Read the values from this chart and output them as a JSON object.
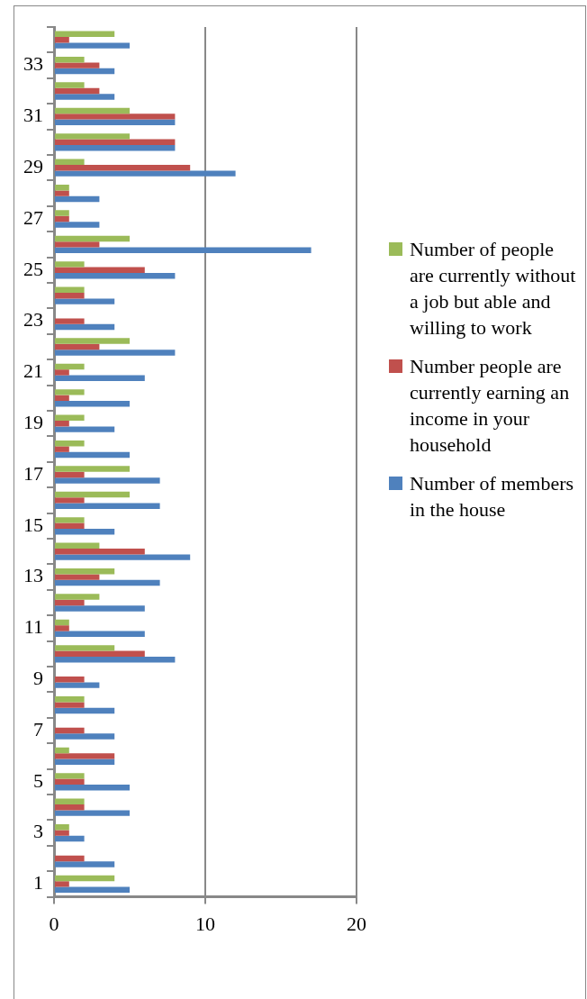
{
  "chart_data": {
    "type": "bar",
    "orientation": "horizontal",
    "categories": [
      null,
      "33",
      null,
      "31",
      null,
      "29",
      null,
      "27",
      null,
      "25",
      null,
      "23",
      null,
      "21",
      null,
      "19",
      null,
      "17",
      null,
      "15",
      null,
      "13",
      null,
      "11",
      null,
      "9",
      null,
      "7",
      null,
      "5",
      null,
      "3",
      null,
      "1"
    ],
    "series": [
      {
        "name": "Number of people are currently without a job but able and willing to work",
        "color": "#9bbb59",
        "values": [
          4,
          2,
          2,
          5,
          5,
          2,
          1,
          1,
          5,
          2,
          2,
          0,
          5,
          2,
          2,
          2,
          2,
          5,
          5,
          2,
          3,
          4,
          3,
          1,
          4,
          0,
          2,
          0,
          1,
          2,
          2,
          1,
          0,
          4
        ]
      },
      {
        "name": "Number people are currently earning an income in your household",
        "color": "#c0504d",
        "values": [
          1,
          3,
          3,
          8,
          8,
          9,
          1,
          1,
          3,
          6,
          2,
          2,
          3,
          1,
          1,
          1,
          1,
          2,
          2,
          2,
          6,
          3,
          2,
          1,
          6,
          2,
          2,
          2,
          4,
          2,
          2,
          1,
          2,
          1
        ]
      },
      {
        "name": "Number of members in the house",
        "color": "#4f81bd",
        "values": [
          5,
          4,
          4,
          8,
          8,
          12,
          3,
          3,
          17,
          8,
          4,
          4,
          8,
          6,
          5,
          4,
          5,
          7,
          7,
          4,
          9,
          7,
          6,
          6,
          8,
          3,
          4,
          4,
          4,
          5,
          5,
          2,
          4,
          5
        ]
      }
    ],
    "xlim": [
      0,
      20
    ],
    "xticks": [
      0,
      10,
      20
    ],
    "grid": "x",
    "legend": "right"
  }
}
